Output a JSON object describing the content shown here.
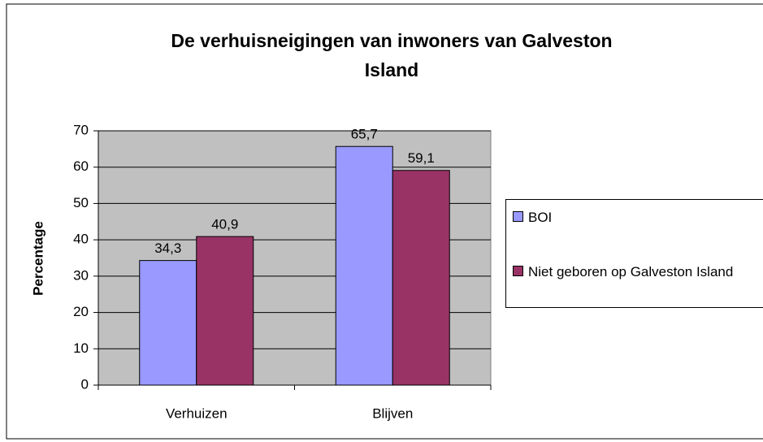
{
  "chart_data": {
    "type": "bar",
    "title": "De verhuisneigingen van inwoners van Galveston Island",
    "y_label": "Percentage",
    "categories": [
      "Verhuizen",
      "Blijven"
    ],
    "series": [
      {
        "name": "BOI",
        "color": "#9999ff",
        "values": [
          34.3,
          65.7
        ],
        "value_labels": [
          "34,3",
          "65,7"
        ]
      },
      {
        "name": "Niet geboren op Galveston Island",
        "color": "#993366",
        "values": [
          40.9,
          59.1
        ],
        "value_labels": [
          "40,9",
          "59,1"
        ]
      }
    ],
    "ylim": [
      0,
      70
    ],
    "yticks": [
      0,
      10,
      20,
      30,
      40,
      50,
      60,
      70
    ],
    "grid": true,
    "legend": "right",
    "plot_background": "#c0c0c0"
  }
}
